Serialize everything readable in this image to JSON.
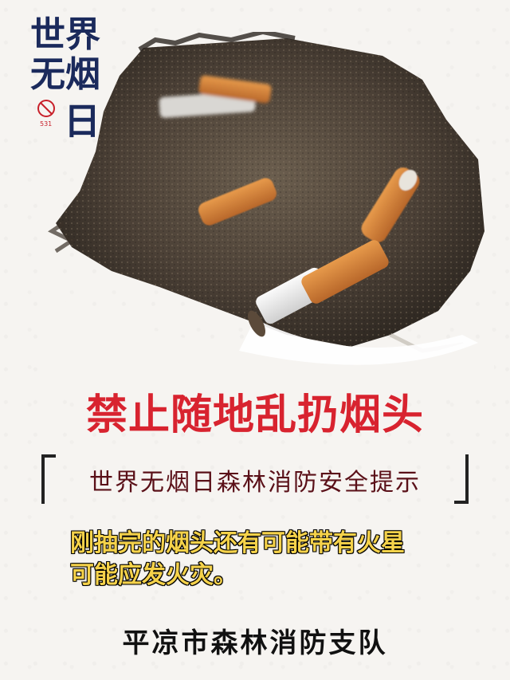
{
  "logo": {
    "line1": "世界",
    "line2": "无烟",
    "line3": "日",
    "badge": "531"
  },
  "title": "禁止随地乱扔烟头",
  "subtitle": "世界无烟日森林消防安全提示",
  "notice": {
    "line1": "刚抽完的烟头还有可能带有火星",
    "line2": "可能应发火灾。"
  },
  "organization": "平凉市森林消防支队",
  "colors": {
    "title": "#d8232f",
    "notice_text": "#f5d24a",
    "logo_blue": "#1b2a5c",
    "logo_red": "#c8202a"
  }
}
